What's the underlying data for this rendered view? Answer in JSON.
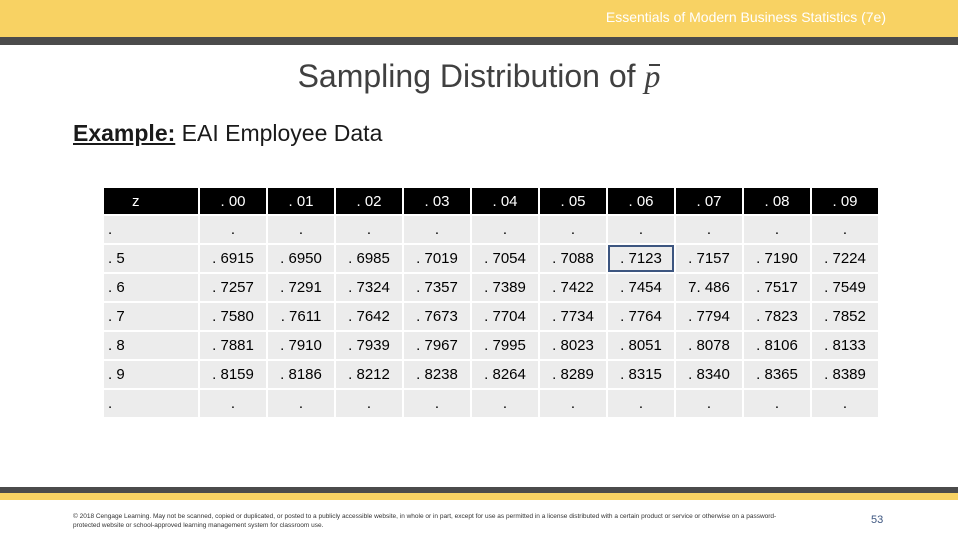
{
  "header": {
    "book_title": "Essentials of Modern Business Statistics (7e)"
  },
  "slide": {
    "title_text": "Sampling Distribution of ",
    "title_symbol": "p",
    "example_label": "Example:",
    "example_text": " EAI Employee Data"
  },
  "table": {
    "columns": [
      "z",
      ". 00",
      ". 01",
      ". 02",
      ". 03",
      ". 04",
      ". 05",
      ". 06",
      ". 07",
      ". 08",
      ". 09"
    ],
    "rows": [
      [
        ".",
        ".",
        ".",
        ".",
        ".",
        ".",
        ".",
        ".",
        ".",
        ".",
        "."
      ],
      [
        ". 5",
        ". 6915",
        ". 6950",
        ". 6985",
        ". 7019",
        ". 7054",
        ". 7088",
        ". 7123",
        ". 7157",
        ". 7190",
        ". 7224"
      ],
      [
        ". 6",
        ". 7257",
        ". 7291",
        ". 7324",
        ". 7357",
        ". 7389",
        ". 7422",
        ". 7454",
        "7. 486",
        ". 7517",
        ". 7549"
      ],
      [
        ". 7",
        ". 7580",
        ". 7611",
        ". 7642",
        ". 7673",
        ". 7704",
        ". 7734",
        ". 7764",
        ". 7794",
        ". 7823",
        ". 7852"
      ],
      [
        ". 8",
        ". 7881",
        ". 7910",
        ". 7939",
        ". 7967",
        ". 7995",
        ". 8023",
        ". 8051",
        ". 8078",
        ". 8106",
        ". 8133"
      ],
      [
        ". 9",
        ". 8159",
        ". 8186",
        ". 8212",
        ". 8238",
        ". 8264",
        ". 8289",
        ". 8315",
        ". 8340",
        ". 8365",
        ". 8389"
      ],
      [
        ".",
        ".",
        ".",
        ".",
        ".",
        ".",
        ".",
        ".",
        ".",
        ".",
        "."
      ]
    ],
    "highlighted_cell": {
      "row": 1,
      "col": 7
    }
  },
  "footer": {
    "copyright": "© 2018 Cengage Learning. May not be scanned, copied or duplicated, or posted to a publicly accessible website, in whole or in part, except for use as permitted in a license distributed with a certain product or service or otherwise on a password-protected website or school-approved learning management system for classroom use.",
    "page_number": "53"
  },
  "colors": {
    "gold": "#f8d263",
    "dark_bar": "#4b4b4b",
    "header_cell": "#000000",
    "body_cell": "#ececec",
    "highlight": "#3d5680"
  }
}
